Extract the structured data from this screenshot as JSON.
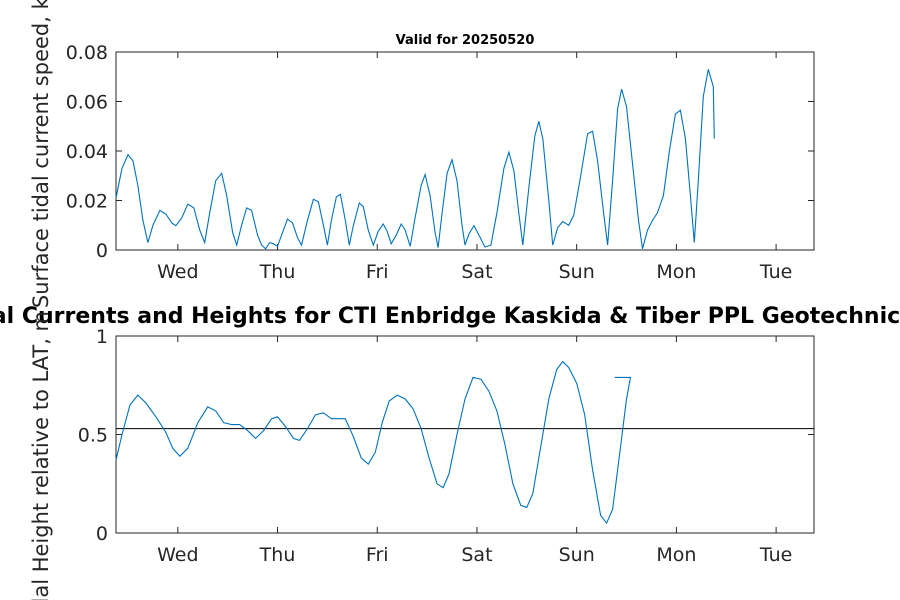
{
  "chart_data": [
    {
      "type": "line",
      "title": "Valid for 20250520",
      "ylabel": "Surface tidal current speed, kn",
      "ylim": [
        0,
        0.08
      ],
      "yticks": [
        "0",
        "0.02",
        "0.04",
        "0.06",
        "0.08"
      ],
      "xticks": [
        "Wed",
        "Thu",
        "Fri",
        "Sat",
        "Sun",
        "Mon",
        "Tue"
      ],
      "xlim_days": [
        -0.62,
        6.38
      ],
      "grid": false,
      "series": [
        {
          "color": "#0072BD",
          "points": [
            [
              -0.62,
              0.021
            ],
            [
              -0.56,
              0.033
            ],
            [
              -0.5,
              0.0385
            ],
            [
              -0.45,
              0.036
            ],
            [
              -0.4,
              0.026
            ],
            [
              -0.35,
              0.012
            ],
            [
              -0.3,
              0.003
            ],
            [
              -0.25,
              0.01
            ],
            [
              -0.18,
              0.016
            ],
            [
              -0.12,
              0.0145
            ],
            [
              -0.06,
              0.011
            ],
            [
              -0.02,
              0.0098
            ],
            [
              0.04,
              0.013
            ],
            [
              0.1,
              0.0185
            ],
            [
              0.16,
              0.017
            ],
            [
              0.22,
              0.008
            ],
            [
              0.27,
              0.003
            ],
            [
              0.32,
              0.015
            ],
            [
              0.38,
              0.028
            ],
            [
              0.44,
              0.031
            ],
            [
              0.49,
              0.022
            ],
            [
              0.55,
              0.007
            ],
            [
              0.59,
              0.002
            ],
            [
              0.64,
              0.01
            ],
            [
              0.69,
              0.017
            ],
            [
              0.74,
              0.016
            ],
            [
              0.8,
              0.006
            ],
            [
              0.84,
              0.002
            ],
            [
              0.88,
              0.0005
            ],
            [
              0.92,
              0.003
            ],
            [
              0.96,
              0.0025
            ],
            [
              1.0,
              0.0015
            ],
            [
              1.05,
              0.007
            ],
            [
              1.1,
              0.0125
            ],
            [
              1.15,
              0.011
            ],
            [
              1.2,
              0.005
            ],
            [
              1.24,
              0.002
            ],
            [
              1.3,
              0.012
            ],
            [
              1.36,
              0.0205
            ],
            [
              1.41,
              0.0195
            ],
            [
              1.46,
              0.01
            ],
            [
              1.5,
              0.002
            ],
            [
              1.54,
              0.012
            ],
            [
              1.59,
              0.0215
            ],
            [
              1.63,
              0.0225
            ],
            [
              1.68,
              0.012
            ],
            [
              1.72,
              0.002
            ],
            [
              1.76,
              0.0098
            ],
            [
              1.82,
              0.019
            ],
            [
              1.86,
              0.0175
            ],
            [
              1.91,
              0.008
            ],
            [
              1.96,
              0.002
            ],
            [
              2.01,
              0.0075
            ],
            [
              2.06,
              0.0105
            ],
            [
              2.1,
              0.0075
            ],
            [
              2.14,
              0.0025
            ],
            [
              2.19,
              0.006
            ],
            [
              2.24,
              0.0105
            ],
            [
              2.28,
              0.008
            ],
            [
              2.33,
              0.0015
            ],
            [
              2.38,
              0.013
            ],
            [
              2.44,
              0.026
            ],
            [
              2.48,
              0.0305
            ],
            [
              2.53,
              0.022
            ],
            [
              2.58,
              0.007
            ],
            [
              2.61,
              0.001
            ],
            [
              2.65,
              0.015
            ],
            [
              2.7,
              0.031
            ],
            [
              2.75,
              0.0365
            ],
            [
              2.8,
              0.028
            ],
            [
              2.85,
              0.01
            ],
            [
              2.88,
              0.002
            ],
            [
              2.92,
              0.0065
            ],
            [
              2.97,
              0.0098
            ],
            [
              3.02,
              0.006
            ],
            [
              3.08,
              0.0012
            ],
            [
              3.14,
              0.002
            ],
            [
              3.2,
              0.015
            ],
            [
              3.27,
              0.033
            ],
            [
              3.32,
              0.0395
            ],
            [
              3.37,
              0.032
            ],
            [
              3.42,
              0.015
            ],
            [
              3.46,
              0.002
            ],
            [
              3.52,
              0.025
            ],
            [
              3.58,
              0.046
            ],
            [
              3.62,
              0.052
            ],
            [
              3.66,
              0.045
            ],
            [
              3.72,
              0.02
            ],
            [
              3.76,
              0.002
            ],
            [
              3.81,
              0.009
            ],
            [
              3.86,
              0.0115
            ],
            [
              3.92,
              0.01
            ],
            [
              3.97,
              0.014
            ],
            [
              4.04,
              0.03
            ],
            [
              4.11,
              0.047
            ],
            [
              4.16,
              0.048
            ],
            [
              4.21,
              0.036
            ],
            [
              4.27,
              0.015
            ],
            [
              4.31,
              0.002
            ],
            [
              4.36,
              0.028
            ],
            [
              4.41,
              0.057
            ],
            [
              4.45,
              0.065
            ],
            [
              4.5,
              0.058
            ],
            [
              4.56,
              0.035
            ],
            [
              4.62,
              0.012
            ],
            [
              4.66,
              0.0005
            ],
            [
              4.71,
              0.008
            ],
            [
              4.76,
              0.012
            ],
            [
              4.81,
              0.015
            ],
            [
              4.87,
              0.022
            ],
            [
              4.93,
              0.04
            ],
            [
              4.99,
              0.055
            ],
            [
              5.04,
              0.0565
            ],
            [
              5.09,
              0.045
            ],
            [
              5.14,
              0.022
            ],
            [
              5.18,
              0.003
            ],
            [
              5.22,
              0.028
            ],
            [
              5.27,
              0.062
            ],
            [
              5.32,
              0.073
            ],
            [
              5.37,
              0.066
            ],
            [
              5.38,
              0.045
            ]
          ]
        }
      ]
    },
    {
      "type": "line",
      "title": "Tidal Currents and Heights for CTI Enbridge  Kaskida & Tiber PPL Geotechnical and",
      "ylabel": "Tidal Height relative to LAT, m",
      "ylim": [
        0,
        1
      ],
      "yticks": [
        "0",
        "0.5",
        "1"
      ],
      "xticks": [
        "Wed",
        "Thu",
        "Fri",
        "Sat",
        "Sun",
        "Mon",
        "Tue"
      ],
      "xlim_days": [
        -0.62,
        6.38
      ],
      "grid": false,
      "reference_line": {
        "y": 0.53,
        "color": "#000000"
      },
      "series": [
        {
          "color": "#0072BD",
          "points": [
            [
              -0.62,
              0.37
            ],
            [
              -0.56,
              0.5
            ],
            [
              -0.48,
              0.65
            ],
            [
              -0.4,
              0.7
            ],
            [
              -0.32,
              0.66
            ],
            [
              -0.22,
              0.59
            ],
            [
              -0.12,
              0.51
            ],
            [
              -0.05,
              0.43
            ],
            [
              0.02,
              0.39
            ],
            [
              0.1,
              0.43
            ],
            [
              0.2,
              0.56
            ],
            [
              0.3,
              0.64
            ],
            [
              0.38,
              0.62
            ],
            [
              0.46,
              0.56
            ],
            [
              0.54,
              0.55
            ],
            [
              0.62,
              0.55
            ],
            [
              0.7,
              0.52
            ],
            [
              0.78,
              0.48
            ],
            [
              0.86,
              0.52
            ],
            [
              0.94,
              0.58
            ],
            [
              1.0,
              0.59
            ],
            [
              1.08,
              0.54
            ],
            [
              1.16,
              0.48
            ],
            [
              1.22,
              0.47
            ],
            [
              1.3,
              0.53
            ],
            [
              1.38,
              0.6
            ],
            [
              1.46,
              0.61
            ],
            [
              1.54,
              0.58
            ],
            [
              1.62,
              0.58
            ],
            [
              1.68,
              0.58
            ],
            [
              1.76,
              0.49
            ],
            [
              1.84,
              0.38
            ],
            [
              1.91,
              0.35
            ],
            [
              1.98,
              0.41
            ],
            [
              2.05,
              0.56
            ],
            [
              2.12,
              0.67
            ],
            [
              2.2,
              0.7
            ],
            [
              2.28,
              0.68
            ],
            [
              2.36,
              0.63
            ],
            [
              2.44,
              0.53
            ],
            [
              2.52,
              0.38
            ],
            [
              2.6,
              0.25
            ],
            [
              2.66,
              0.23
            ],
            [
              2.72,
              0.3
            ],
            [
              2.8,
              0.5
            ],
            [
              2.88,
              0.68
            ],
            [
              2.96,
              0.79
            ],
            [
              3.04,
              0.78
            ],
            [
              3.12,
              0.72
            ],
            [
              3.2,
              0.62
            ],
            [
              3.28,
              0.45
            ],
            [
              3.36,
              0.25
            ],
            [
              3.44,
              0.14
            ],
            [
              3.5,
              0.13
            ],
            [
              3.56,
              0.2
            ],
            [
              3.64,
              0.44
            ],
            [
              3.72,
              0.68
            ],
            [
              3.8,
              0.83
            ],
            [
              3.86,
              0.87
            ],
            [
              3.92,
              0.84
            ],
            [
              4.0,
              0.76
            ],
            [
              4.08,
              0.6
            ],
            [
              4.16,
              0.32
            ],
            [
              4.24,
              0.09
            ],
            [
              4.3,
              0.05
            ],
            [
              4.36,
              0.12
            ],
            [
              4.44,
              0.44
            ],
            [
              4.5,
              0.68
            ],
            [
              4.54,
              0.79
            ],
            [
              4.38,
              0.79
            ]
          ]
        }
      ]
    }
  ]
}
